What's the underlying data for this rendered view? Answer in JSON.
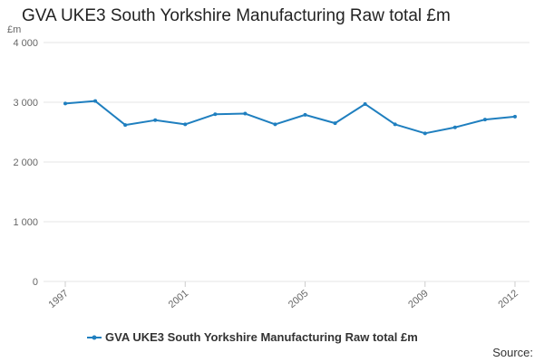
{
  "title": "GVA UKE3 South Yorkshire Manufacturing Raw total £m",
  "source_label": "Source:",
  "chart_data": {
    "type": "line",
    "title": "GVA UKE3 South Yorkshire Manufacturing Raw total £m",
    "xlabel": "",
    "ylabel": "£m",
    "x": [
      1997,
      1998,
      1999,
      2000,
      2001,
      2002,
      2003,
      2004,
      2005,
      2006,
      2007,
      2008,
      2009,
      2010,
      2011,
      2012
    ],
    "x_tick_labels": [
      "1997",
      "2001",
      "2005",
      "2009",
      "2012"
    ],
    "y_tick_labels": [
      "0",
      "1 000",
      "2 000",
      "3 000",
      "4 000"
    ],
    "ylim": [
      0,
      4000
    ],
    "grid": true,
    "legend": "bottom",
    "series": [
      {
        "name": "GVA UKE3 South Yorkshire Manufacturing Raw total £m",
        "color": "#1f7fbf",
        "values": [
          2980,
          3020,
          2620,
          2700,
          2630,
          2800,
          2810,
          2630,
          2790,
          2650,
          2970,
          2630,
          2480,
          2580,
          2710,
          2760
        ]
      }
    ]
  }
}
